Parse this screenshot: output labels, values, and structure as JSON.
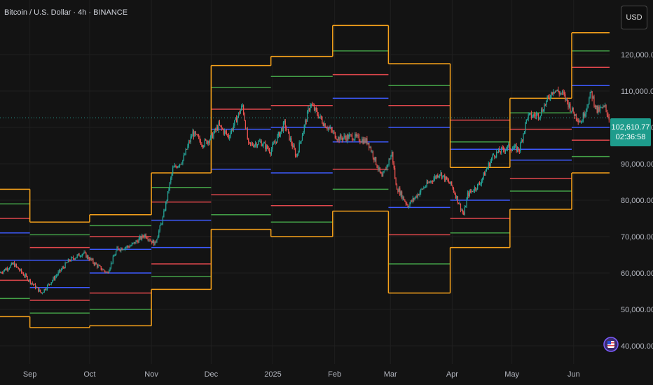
{
  "header": {
    "symbol_title": "Bitcoin / U.S. Dollar · 4h · BINANCE"
  },
  "toolbar": {
    "currency_label": "USD"
  },
  "price_tag": {
    "price": "102,610.77",
    "countdown": "02:36:58"
  },
  "colors": {
    "background": "#131313",
    "orange": "#f7a21b",
    "green": "#43a047",
    "red": "#e0474c",
    "blue": "#3d5afe",
    "up_candle": "#26a69a",
    "down_candle": "#ef5350",
    "last_price": "#26a69a"
  },
  "chart_data": {
    "type": "line",
    "title": "",
    "xlabel": "",
    "ylabel": "",
    "ylim": [
      35000,
      135000
    ],
    "y_ticks": [
      "40,000.00",
      "50,000.00",
      "60,000.00",
      "70,000.00",
      "80,000.00",
      "90,000.00",
      "100,000.00",
      "110,000.00",
      "120,000.00"
    ],
    "y_tick_values": [
      40000,
      50000,
      60000,
      70000,
      80000,
      90000,
      100000,
      110000,
      120000
    ],
    "x_ticks": [
      "Sep",
      "Oct",
      "Nov",
      "Dec",
      "2025",
      "Feb",
      "Mar",
      "Apr",
      "May",
      "Jun"
    ],
    "x_tick_dates": [
      "2024-09-01",
      "2024-10-01",
      "2024-11-01",
      "2024-12-01",
      "2025-01-01",
      "2025-02-01",
      "2025-03-01",
      "2025-04-01",
      "2025-05-01",
      "2025-06-01"
    ],
    "x_range": [
      "2024-08-17",
      "2025-06-19"
    ],
    "last_price": 102610.77,
    "level_segments": [
      {
        "start": "2024-08-17",
        "end": "2024-09-01",
        "orange": [
          83000,
          48000
        ],
        "green": [
          79000,
          53000
        ],
        "red": [
          75000,
          58000
        ],
        "blue": [
          71000,
          63500
        ]
      },
      {
        "start": "2024-09-01",
        "end": "2024-10-01",
        "orange": [
          74000,
          45000
        ],
        "green": [
          70500,
          49000
        ],
        "red": [
          67000,
          52500
        ],
        "blue": [
          63500,
          56000
        ]
      },
      {
        "start": "2024-10-01",
        "end": "2024-11-01",
        "orange": [
          76000,
          45500
        ],
        "green": [
          73000,
          50000
        ],
        "red": [
          70000,
          54500
        ],
        "blue": [
          66500,
          60000
        ]
      },
      {
        "start": "2024-11-01",
        "end": "2024-12-01",
        "orange": [
          87500,
          55500
        ],
        "green": [
          83500,
          59000
        ],
        "red": [
          79500,
          62500
        ],
        "blue": [
          74500,
          67000
        ]
      },
      {
        "start": "2024-12-01",
        "end": "2024-12-31",
        "orange": [
          117000,
          72000
        ],
        "green": [
          111000,
          76000
        ],
        "red": [
          105000,
          81500
        ],
        "blue": [
          99500,
          88500
        ]
      },
      {
        "start": "2024-12-31",
        "end": "2025-01-31",
        "orange": [
          119500,
          70000
        ],
        "green": [
          114000,
          74000
        ],
        "red": [
          106000,
          78500
        ],
        "blue": [
          100000,
          87500
        ]
      },
      {
        "start": "2025-01-31",
        "end": "2025-02-28",
        "orange": [
          128000,
          77000
        ],
        "green": [
          121000,
          83000
        ],
        "red": [
          114500,
          88500
        ],
        "blue": [
          108000,
          96000
        ]
      },
      {
        "start": "2025-02-28",
        "end": "2025-03-31",
        "orange": [
          117500,
          54500
        ],
        "green": [
          111500,
          62500
        ],
        "red": [
          106000,
          70500
        ],
        "blue": [
          100000,
          78000
        ]
      },
      {
        "start": "2025-03-31",
        "end": "2025-04-30",
        "orange": [
          89000,
          67000
        ],
        "green": [
          96000,
          71000
        ],
        "red": [
          102000,
          75000
        ],
        "blue": [
          94000,
          80000
        ]
      },
      {
        "start": "2025-04-30",
        "end": "2025-05-31",
        "orange": [
          108000,
          77500
        ],
        "green": [
          104000,
          82500
        ],
        "red": [
          99500,
          86000
        ],
        "blue": [
          94000,
          91000
        ]
      },
      {
        "start": "2025-05-31",
        "end": "2025-06-19",
        "orange": [
          126000,
          87500
        ],
        "green": [
          121000,
          92000
        ],
        "red": [
          116500,
          96500
        ],
        "blue": [
          111500,
          100000
        ]
      }
    ],
    "price_path": [
      [
        "2024-08-17",
        60000
      ],
      [
        "2024-08-24",
        62500
      ],
      [
        "2024-08-31",
        58500
      ],
      [
        "2024-09-07",
        54500
      ],
      [
        "2024-09-14",
        59000
      ],
      [
        "2024-09-21",
        63500
      ],
      [
        "2024-09-28",
        65500
      ],
      [
        "2024-10-05",
        62000
      ],
      [
        "2024-10-10",
        60000
      ],
      [
        "2024-10-15",
        66500
      ],
      [
        "2024-10-22",
        67500
      ],
      [
        "2024-10-29",
        70500
      ],
      [
        "2024-11-03",
        68000
      ],
      [
        "2024-11-07",
        75000
      ],
      [
        "2024-11-12",
        88500
      ],
      [
        "2024-11-17",
        91000
      ],
      [
        "2024-11-22",
        98500
      ],
      [
        "2024-11-27",
        95500
      ],
      [
        "2024-12-01",
        97000
      ],
      [
        "2024-12-05",
        100500
      ],
      [
        "2024-12-10",
        97500
      ],
      [
        "2024-12-17",
        106000
      ],
      [
        "2024-12-20",
        95000
      ],
      [
        "2024-12-26",
        96000
      ],
      [
        "2024-12-31",
        93500
      ],
      [
        "2025-01-07",
        101000
      ],
      [
        "2025-01-13",
        92000
      ],
      [
        "2025-01-20",
        106500
      ],
      [
        "2025-01-27",
        101000
      ],
      [
        "2025-02-03",
        97000
      ],
      [
        "2025-02-10",
        97500
      ],
      [
        "2025-02-18",
        96000
      ],
      [
        "2025-02-25",
        86000
      ],
      [
        "2025-03-02",
        93000
      ],
      [
        "2025-03-04",
        84000
      ],
      [
        "2025-03-10",
        78500
      ],
      [
        "2025-03-18",
        83500
      ],
      [
        "2025-03-26",
        87500
      ],
      [
        "2025-04-01",
        84000
      ],
      [
        "2025-04-07",
        76000
      ],
      [
        "2025-04-09",
        81500
      ],
      [
        "2025-04-15",
        84500
      ],
      [
        "2025-04-22",
        92500
      ],
      [
        "2025-04-29",
        94500
      ],
      [
        "2025-05-05",
        94000
      ],
      [
        "2025-05-09",
        103000
      ],
      [
        "2025-05-15",
        103500
      ],
      [
        "2025-05-22",
        110500
      ],
      [
        "2025-05-27",
        109000
      ],
      [
        "2025-06-01",
        104000
      ],
      [
        "2025-06-05",
        101500
      ],
      [
        "2025-06-10",
        109500
      ],
      [
        "2025-06-13",
        104500
      ],
      [
        "2025-06-17",
        105500
      ],
      [
        "2025-06-19",
        102610
      ]
    ]
  }
}
